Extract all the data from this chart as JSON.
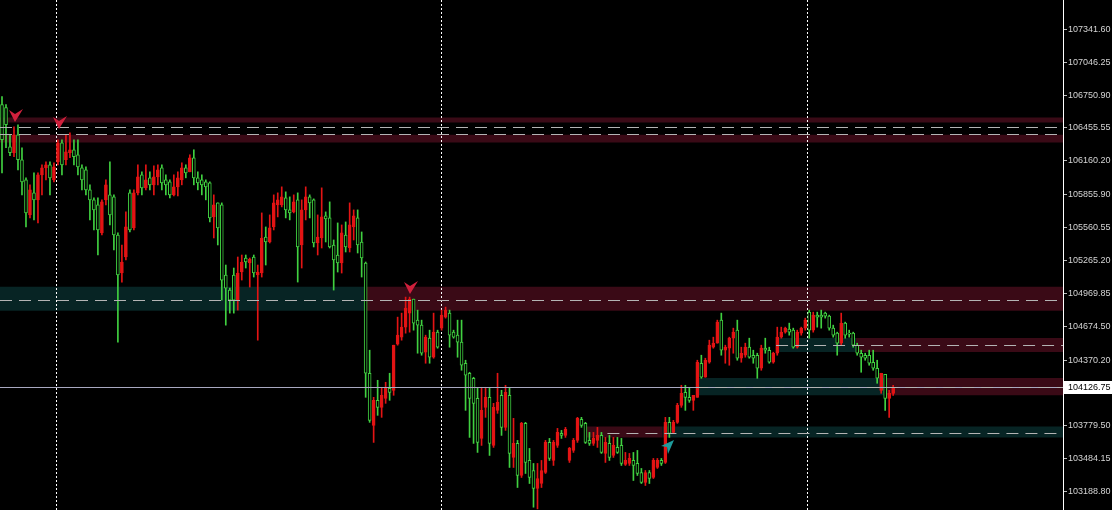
{
  "chart_data": {
    "type": "candlestick",
    "categories": [
      null,
      null,
      null,
      null,
      null,
      null,
      null,
      null,
      null,
      null,
      null,
      null,
      null,
      null,
      null,
      null,
      null,
      null,
      null,
      null,
      null,
      null,
      null,
      null,
      null,
      null,
      null,
      null,
      null,
      null,
      null,
      null,
      null,
      null,
      null,
      null,
      null,
      null,
      null,
      null,
      null,
      null,
      null,
      null,
      null,
      null,
      null,
      null,
      null,
      null,
      null,
      null,
      null,
      null,
      null,
      null,
      null,
      null,
      null,
      null,
      null,
      null,
      null,
      null,
      null,
      null,
      null,
      null,
      null,
      null,
      null,
      null,
      null,
      null,
      null,
      null,
      null,
      null,
      null,
      null,
      null,
      null,
      null,
      null,
      null,
      null,
      null,
      null,
      null,
      null,
      null,
      null,
      null,
      null,
      null,
      null,
      null,
      null,
      null,
      null,
      null,
      null,
      null,
      null,
      null,
      null,
      null,
      null,
      null,
      null,
      null,
      null,
      null,
      null,
      null,
      null,
      null,
      null,
      null,
      null,
      null,
      null,
      null,
      null,
      null,
      null,
      null,
      null,
      null,
      null,
      null,
      null,
      null,
      null,
      null,
      null,
      null,
      null,
      null,
      null,
      null,
      null,
      null,
      null,
      null,
      null,
      null,
      null,
      null,
      null,
      null,
      null,
      null,
      null,
      null,
      null,
      null,
      null,
      null,
      null,
      null,
      null,
      null,
      null,
      null,
      null,
      null,
      null,
      null,
      null,
      null,
      null,
      null,
      null,
      null,
      null,
      null,
      null,
      null,
      null,
      null,
      null,
      null,
      null,
      null,
      null,
      null,
      null,
      null,
      null,
      null,
      null,
      null,
      null,
      null,
      null,
      null,
      null,
      null,
      null,
      null,
      null,
      null,
      null,
      null,
      null,
      null,
      null,
      null,
      null,
      null,
      null,
      null,
      null,
      null,
      null,
      null,
      null,
      null,
      null,
      null,
      null,
      null,
      null,
      null,
      null,
      null,
      null,
      null,
      null,
      null,
      null,
      null,
      null,
      null,
      null,
      null,
      null,
      null,
      null,
      null,
      null,
      null,
      null,
      null,
      null,
      null,
      null,
      null,
      null,
      null,
      null,
      null,
      null,
      null,
      null,
      null,
      null,
      null,
      null,
      null,
      null,
      null,
      null,
      null,
      null
    ],
    "ohlc": [
      [
        106665,
        106737,
        106053,
        106350
      ],
      [
        106638,
        106665,
        106278,
        106485
      ],
      [
        106287,
        106395,
        106206,
        106233
      ],
      [
        106233,
        106467,
        106197,
        106395
      ],
      [
        106395,
        106485,
        106080,
        106170
      ],
      [
        106170,
        106278,
        105855,
        105972
      ],
      [
        105990,
        106008,
        105567,
        105693
      ],
      [
        105675,
        105945,
        105648,
        105900
      ],
      [
        105873,
        106053,
        105630,
        105810
      ],
      [
        105810,
        106053,
        105603,
        106035
      ],
      [
        106035,
        106125,
        105855,
        106098
      ],
      [
        106098,
        106152,
        105990,
        106125
      ],
      [
        106125,
        106152,
        105855,
        106008
      ],
      [
        105990,
        106143,
        105972,
        106107
      ],
      [
        106152,
        106350,
        106125,
        106323
      ],
      [
        106323,
        106350,
        106035,
        106125
      ],
      [
        106170,
        106395,
        106125,
        106242
      ],
      [
        106233,
        106413,
        106188,
        106260
      ],
      [
        106260,
        106350,
        106125,
        106197
      ],
      [
        106215,
        106350,
        106035,
        106107
      ],
      [
        106098,
        106125,
        105900,
        105990
      ],
      [
        106080,
        106107,
        105855,
        105900
      ],
      [
        105900,
        105945,
        105630,
        105810
      ],
      [
        105810,
        105828,
        105540,
        105720
      ],
      [
        105765,
        105828,
        105315,
        105540
      ],
      [
        105513,
        105810,
        105495,
        105792
      ],
      [
        105810,
        105990,
        105765,
        105945
      ],
      [
        105855,
        106152,
        105585,
        105675
      ],
      [
        105837,
        105855,
        105360,
        105495
      ],
      [
        105495,
        105513,
        104532,
        105135
      ],
      [
        105153,
        105405,
        105072,
        105252
      ],
      [
        105297,
        105702,
        105270,
        105567
      ],
      [
        105873,
        105900,
        105522,
        105540
      ],
      [
        105558,
        105900,
        105540,
        105873
      ],
      [
        105873,
        106125,
        105855,
        106017
      ],
      [
        106035,
        106062,
        105855,
        105918
      ],
      [
        105918,
        106125,
        105900,
        105990
      ],
      [
        106008,
        106062,
        105900,
        105945
      ],
      [
        105945,
        106116,
        105855,
        106017
      ],
      [
        106017,
        106125,
        105945,
        106080
      ],
      [
        106098,
        106125,
        105900,
        105963
      ],
      [
        105990,
        106035,
        105855,
        105945
      ],
      [
        105972,
        105990,
        105828,
        105855
      ],
      [
        105855,
        106035,
        105846,
        105927
      ],
      [
        105927,
        106062,
        105846,
        106008
      ],
      [
        105990,
        106143,
        105945,
        106098
      ],
      [
        106098,
        106125,
        106008,
        106053
      ],
      [
        106062,
        106215,
        106062,
        106188
      ],
      [
        106188,
        106260,
        105945,
        106008
      ],
      [
        106008,
        106062,
        105900,
        105963
      ],
      [
        105990,
        106035,
        105855,
        105945
      ],
      [
        105972,
        105990,
        105810,
        105927
      ],
      [
        105963,
        105972,
        105612,
        105648
      ],
      [
        105657,
        105855,
        105468,
        105765
      ],
      [
        105783,
        105783,
        105405,
        105558
      ],
      [
        105765,
        105783,
        104910,
        105090
      ],
      [
        105135,
        105225,
        104685,
        105018
      ],
      [
        105000,
        105018,
        104793,
        104910
      ],
      [
        105135,
        105198,
        104793,
        104910
      ],
      [
        104910,
        105297,
        104820,
        105153
      ],
      [
        105162,
        105315,
        105090,
        105252
      ],
      [
        105288,
        105315,
        105198,
        105252
      ],
      [
        105243,
        105288,
        105027,
        105279
      ],
      [
        105297,
        105315,
        105117,
        105153
      ],
      [
        105135,
        105225,
        104550,
        105162
      ],
      [
        105153,
        105693,
        105117,
        105468
      ],
      [
        105477,
        105567,
        105225,
        105432
      ],
      [
        105432,
        105675,
        105423,
        105558
      ],
      [
        105567,
        105855,
        105540,
        105783
      ],
      [
        105765,
        105873,
        105657,
        105810
      ],
      [
        105765,
        105927,
        105747,
        105837
      ],
      [
        105828,
        105882,
        105648,
        105720
      ],
      [
        105720,
        105837,
        105630,
        105693
      ],
      [
        105702,
        105855,
        105693,
        105792
      ],
      [
        105810,
        105873,
        105072,
        105387
      ],
      [
        105405,
        105810,
        105198,
        105720
      ],
      [
        105720,
        105927,
        105630,
        105837
      ],
      [
        105837,
        105855,
        105648,
        105783
      ],
      [
        105810,
        105819,
        105387,
        105423
      ],
      [
        105423,
        105675,
        105315,
        105477
      ],
      [
        105468,
        105918,
        105378,
        105657
      ],
      [
        105666,
        105702,
        105432,
        105639
      ],
      [
        105648,
        105792,
        105378,
        105387
      ],
      [
        105405,
        105450,
        105000,
        105270
      ],
      [
        105315,
        105603,
        105162,
        105243
      ],
      [
        105243,
        105585,
        105153,
        105513
      ],
      [
        105495,
        105612,
        105342,
        105387
      ],
      [
        105378,
        105783,
        105342,
        105585
      ],
      [
        105567,
        105720,
        105450,
        105666
      ],
      [
        105648,
        105720,
        105333,
        105405
      ],
      [
        105432,
        105522,
        105117,
        105288
      ],
      [
        105243,
        105252,
        104037,
        104253
      ],
      [
        104253,
        104460,
        103812,
        103830
      ],
      [
        103785,
        104037,
        103632,
        104010
      ],
      [
        104010,
        104190,
        103875,
        103947
      ],
      [
        103947,
        104127,
        103857,
        104055
      ],
      [
        104028,
        104172,
        103983,
        104118
      ],
      [
        104118,
        104253,
        104010,
        104082
      ],
      [
        104100,
        104505,
        104055,
        104505
      ],
      [
        104514,
        104757,
        104505,
        104595
      ],
      [
        104577,
        104793,
        104550,
        104667
      ],
      [
        104667,
        104937,
        104613,
        104838
      ],
      [
        104793,
        104937,
        104622,
        104919
      ],
      [
        104919,
        104919,
        104640,
        104703
      ],
      [
        104730,
        104820,
        104433,
        104685
      ],
      [
        104685,
        104730,
        104415,
        104433
      ],
      [
        104442,
        104595,
        104343,
        104577
      ],
      [
        104568,
        104640,
        104343,
        104397
      ],
      [
        104397,
        104793,
        104388,
        104622
      ],
      [
        104622,
        104640,
        104478,
        104487
      ],
      [
        104658,
        104820,
        104640,
        104775
      ],
      [
        104757,
        104847,
        104748,
        104820
      ],
      [
        104793,
        104820,
        104487,
        104595
      ],
      [
        104622,
        104640,
        104568,
        104577
      ],
      [
        104595,
        104730,
        104397,
        104532
      ],
      [
        104532,
        104730,
        104280,
        104325
      ],
      [
        104343,
        104370,
        103920,
        104235
      ],
      [
        104253,
        104262,
        103677,
        104028
      ],
      [
        104208,
        104217,
        103623,
        103983
      ],
      [
        104028,
        104118,
        103542,
        103632
      ],
      [
        103668,
        104127,
        103605,
        103920
      ],
      [
        103947,
        104127,
        103857,
        104037
      ],
      [
        104037,
        104127,
        103515,
        103623
      ],
      [
        103605,
        103983,
        103587,
        103947
      ],
      [
        103920,
        104253,
        103893,
        103992
      ],
      [
        104055,
        104100,
        103695,
        103767
      ],
      [
        103767,
        104145,
        103740,
        104082
      ],
      [
        104055,
        104127,
        103407,
        103533
      ],
      [
        103497,
        103848,
        103407,
        103623
      ],
      [
        103623,
        103650,
        103227,
        103335
      ],
      [
        103335,
        103812,
        103317,
        103803
      ],
      [
        103803,
        103812,
        103353,
        103452
      ],
      [
        103470,
        103578,
        103263,
        103317
      ],
      [
        103380,
        103443,
        103050,
        103218
      ],
      [
        103218,
        103443,
        103035,
        103308
      ],
      [
        103263,
        103470,
        103227,
        103380
      ],
      [
        103362,
        103650,
        103353,
        103632
      ],
      [
        103632,
        103668,
        103470,
        103488
      ],
      [
        103470,
        103650,
        103425,
        103632
      ],
      [
        103605,
        103758,
        103587,
        103722
      ],
      [
        103713,
        103740,
        103668,
        103695
      ],
      [
        103695,
        103767,
        103677,
        103749
      ],
      [
        103470,
        103587,
        103452,
        103578
      ],
      [
        103560,
        103668,
        103542,
        103650
      ],
      [
        103650,
        103857,
        103632,
        103848
      ],
      [
        103839,
        103857,
        103767,
        103785
      ],
      [
        103803,
        103812,
        103623,
        103632
      ],
      [
        103650,
        103722,
        103605,
        103623
      ],
      [
        103623,
        103722,
        103605,
        103668
      ],
      [
        103650,
        103767,
        103587,
        103695
      ],
      [
        103695,
        103722,
        103533,
        103542
      ],
      [
        103533,
        103677,
        103452,
        103632
      ],
      [
        103623,
        103695,
        103470,
        103497
      ],
      [
        103515,
        103677,
        103497,
        103605
      ],
      [
        103587,
        103677,
        103533,
        103542
      ],
      [
        103605,
        103668,
        103425,
        103443
      ],
      [
        103434,
        103542,
        103425,
        103470
      ],
      [
        103443,
        103533,
        103425,
        103488
      ],
      [
        103470,
        103542,
        103290,
        103425
      ],
      [
        103443,
        103560,
        103335,
        103353
      ],
      [
        103362,
        103398,
        103263,
        103272
      ],
      [
        103272,
        103380,
        103245,
        103362
      ],
      [
        103362,
        103380,
        103263,
        103308
      ],
      [
        103317,
        103488,
        103308,
        103470
      ],
      [
        103407,
        103488,
        103398,
        103470
      ],
      [
        103470,
        103488,
        103425,
        103443
      ],
      [
        103452,
        103857,
        103443,
        103812
      ],
      [
        103812,
        103857,
        103677,
        103713
      ],
      [
        103722,
        103830,
        103713,
        103812
      ],
      [
        103812,
        103983,
        103803,
        103965
      ],
      [
        103965,
        104145,
        103947,
        104073
      ],
      [
        104082,
        104145,
        103920,
        104037
      ],
      [
        104037,
        104127,
        103992,
        104010
      ],
      [
        104010,
        104055,
        103920,
        104055
      ],
      [
        104037,
        104370,
        104037,
        104352
      ],
      [
        104343,
        104415,
        104208,
        104217
      ],
      [
        104217,
        104388,
        104217,
        104370
      ],
      [
        104352,
        104550,
        104343,
        104505
      ],
      [
        104487,
        104577,
        104478,
        104523
      ],
      [
        104523,
        104730,
        104523,
        104712
      ],
      [
        104730,
        104793,
        104415,
        104460
      ],
      [
        104460,
        104505,
        104343,
        104487
      ],
      [
        104478,
        104577,
        104325,
        104568
      ],
      [
        104568,
        104658,
        104433,
        104622
      ],
      [
        104640,
        104730,
        104370,
        104388
      ],
      [
        104388,
        104487,
        104352,
        104433
      ],
      [
        104415,
        104523,
        104397,
        104487
      ],
      [
        104487,
        104568,
        104388,
        104397
      ],
      [
        104415,
        104460,
        104343,
        104388
      ],
      [
        104415,
        104433,
        104208,
        104298
      ],
      [
        104298,
        104505,
        104280,
        104478
      ],
      [
        104478,
        104568,
        104433,
        104460
      ],
      [
        104460,
        104487,
        104343,
        104352
      ],
      [
        104352,
        104442,
        104343,
        104433
      ],
      [
        104433,
        104667,
        104415,
        104577
      ],
      [
        104577,
        104667,
        104568,
        104622
      ],
      [
        104622,
        104667,
        104613,
        104658
      ],
      [
        104649,
        104703,
        104595,
        104622
      ],
      [
        104640,
        104658,
        104478,
        104487
      ],
      [
        104487,
        104640,
        104478,
        104622
      ],
      [
        104613,
        104667,
        104595,
        104658
      ],
      [
        104658,
        104748,
        104640,
        104730
      ],
      [
        104802,
        104820,
        104568,
        104640
      ],
      [
        104640,
        104802,
        104622,
        104775
      ],
      [
        104775,
        104802,
        104667,
        104757
      ],
      [
        104775,
        104820,
        104658,
        104757
      ],
      [
        104793,
        104802,
        104748,
        104766
      ],
      [
        104766,
        104775,
        104640,
        104658
      ],
      [
        104658,
        104685,
        104577,
        104595
      ],
      [
        104613,
        104622,
        104415,
        104523
      ],
      [
        104523,
        104793,
        104505,
        104703
      ],
      [
        104703,
        104712,
        104568,
        104595
      ],
      [
        104613,
        104640,
        104577,
        104604
      ],
      [
        104613,
        104622,
        104487,
        104505
      ],
      [
        104505,
        104523,
        104415,
        104433
      ],
      [
        104433,
        104460,
        104262,
        104397
      ],
      [
        104415,
        104433,
        104370,
        104388
      ],
      [
        104415,
        104460,
        104325,
        104343
      ],
      [
        104352,
        104460,
        104280,
        104298
      ],
      [
        104298,
        104370,
        104163,
        104208
      ],
      [
        104100,
        104253,
        104073,
        104253
      ],
      [
        104244,
        104244,
        103920,
        104028
      ],
      [
        104028,
        104100,
        103857,
        104073
      ],
      [
        104073,
        104145,
        104055,
        104126.75
      ],
      null,
      null,
      null,
      null,
      null,
      null,
      null,
      null,
      null,
      null,
      null,
      null,
      null,
      null,
      null,
      null,
      null,
      null,
      null,
      null,
      null,
      null,
      null,
      null,
      null,
      null,
      null,
      null,
      null,
      null,
      null,
      null,
      null,
      null,
      null,
      null,
      null,
      null,
      null,
      null,
      null,
      null
    ],
    "colors": [
      "#40d040",
      "#40d040",
      "#40d040",
      "#e31414",
      "#40d040",
      "#40d040",
      "#40d040",
      "#e31414",
      "#40d040",
      "#e31414",
      "#e31414",
      "#e31414",
      "#40d040",
      "#e31414",
      "#e31414",
      "#40d040",
      "#e31414",
      "#e31414",
      "#40d040",
      "#40d040",
      "#40d040",
      "#40d040",
      "#40d040",
      "#40d040",
      "#40d040",
      "#e31414",
      "#e31414",
      "#40d040",
      "#40d040",
      "#40d040",
      "#e31414",
      "#e31414",
      "#40d040",
      "#e31414",
      "#e31414",
      "#40d040",
      "#e31414",
      "#40d040",
      "#e31414",
      "#e31414",
      "#40d040",
      "#40d040",
      "#40d040",
      "#e31414",
      "#e31414",
      "#e31414",
      "#40d040",
      "#e31414",
      "#40d040",
      "#40d040",
      "#40d040",
      "#40d040",
      "#40d040",
      "#e31414",
      "#40d040",
      "#40d040",
      "#40d040",
      "#40d040",
      "#40d040",
      "#e31414",
      "#e31414",
      "#40d040",
      "#e31414",
      "#40d040",
      "#e31414",
      "#e31414",
      "#40d040",
      "#e31414",
      "#e31414",
      "#e31414",
      "#e31414",
      "#40d040",
      "#40d040",
      "#e31414",
      "#40d040",
      "#e31414",
      "#e31414",
      "#40d040",
      "#40d040",
      "#e31414",
      "#e31414",
      "#40d040",
      "#40d040",
      "#40d040",
      "#40d040",
      "#e31414",
      "#40d040",
      "#e31414",
      "#e31414",
      "#40d040",
      "#40d040",
      "#40d040",
      "#40d040",
      "#e31414",
      "#40d040",
      "#e31414",
      "#e31414",
      "#40d040",
      "#e31414",
      "#e31414",
      "#e31414",
      "#e31414",
      "#e31414",
      "#40d040",
      "#40d040",
      "#40d040",
      "#e31414",
      "#40d040",
      "#e31414",
      "#40d040",
      "#e31414",
      "#e31414",
      "#40d040",
      "#40d040",
      "#40d040",
      "#40d040",
      "#40d040",
      "#40d040",
      "#40d040",
      "#40d040",
      "#e31414",
      "#e31414",
      "#40d040",
      "#e31414",
      "#e31414",
      "#40d040",
      "#e31414",
      "#40d040",
      "#e31414",
      "#40d040",
      "#e31414",
      "#40d040",
      "#40d040",
      "#40d040",
      "#e31414",
      "#e31414",
      "#e31414",
      "#40d040",
      "#e31414",
      "#e31414",
      "#40d040",
      "#e31414",
      "#e31414",
      "#e31414",
      "#e31414",
      "#40d040",
      "#40d040",
      "#40d040",
      "#e31414",
      "#e31414",
      "#40d040",
      "#e31414",
      "#40d040",
      "#e31414",
      "#40d040",
      "#40d040",
      "#e31414",
      "#e31414",
      "#40d040",
      "#40d040",
      "#40d040",
      "#e31414",
      "#40d040",
      "#e31414",
      "#e31414",
      "#40d040",
      "#e31414",
      "#40d040",
      "#e31414",
      "#e31414",
      "#e31414",
      "#40d040",
      "#40d040",
      "#e31414",
      "#e31414",
      "#40d040",
      "#e31414",
      "#e31414",
      "#e31414",
      "#e31414",
      "#40d040",
      "#e31414",
      "#e31414",
      "#e31414",
      "#40d040",
      "#e31414",
      "#e31414",
      "#40d040",
      "#40d040",
      "#40d040",
      "#e31414",
      "#40d040",
      "#40d040",
      "#e31414",
      "#e31414",
      "#e31414",
      "#e31414",
      "#40d040",
      "#40d040",
      "#e31414",
      "#e31414",
      "#e31414",
      "#40d040",
      "#e31414",
      "#40d040",
      "#40d040",
      "#40d040",
      "#40d040",
      "#40d040",
      "#40d040",
      "#e31414",
      "#40d040",
      "#40d040",
      "#40d040",
      "#40d040",
      "#40d040",
      "#40d040",
      "#40d040",
      "#40d040",
      "#40d040",
      "#e31414",
      "#40d040",
      "#e31414",
      "#e31414",
      null,
      null,
      null,
      null,
      null,
      null,
      null,
      null,
      null,
      null,
      null,
      null,
      null,
      null,
      null,
      null,
      null,
      null,
      null,
      null,
      null,
      null,
      null,
      null,
      null,
      null,
      null,
      null,
      null,
      null,
      null,
      null,
      null,
      null,
      null,
      null,
      null,
      null,
      null,
      null,
      null,
      null
    ],
    "ylim": [
      103025,
      107605
    ],
    "yticks": [
      {
        "value": 107341.6,
        "label": "107341.60"
      },
      107046.25,
      {
        "value": 106750.9,
        "label": "106750.90"
      },
      106455.55,
      {
        "value": 106160.2,
        "label": "106160.20"
      },
      {
        "value": 105855.9,
        "label": "105855.90"
      },
      105560.55,
      {
        "value": 105265.2,
        "label": "105265.20"
      },
      104969.85,
      {
        "value": 104674.5,
        "label": "104674.50"
      },
      {
        "value": 104370.2,
        "label": "104370.20"
      },
      {
        "value": 104074.85,
        "label": null
      },
      {
        "value": 103779.5,
        "label": "103779.50"
      },
      103484.15,
      {
        "value": 103188.8,
        "label": "103188.80"
      }
    ],
    "tick_labels": "y",
    "bands": [
      {
        "axis": "y",
        "from": 106505,
        "to": 106550,
        "color": "#3a0a16"
      },
      {
        "axis": "y",
        "from": 106325,
        "to": 106395,
        "color": "#3a0a16"
      },
      {
        "axis": "y",
        "from": 104815,
        "to": 105030,
        "color": "#072424"
      },
      {
        "axis": "y",
        "from": 104815,
        "to": 105030,
        "color": "#3a0a16"
      },
      {
        "axis": "y",
        "from": 104445,
        "to": 104570,
        "color": "#3a0a16"
      },
      {
        "axis": "y",
        "from": 104445,
        "to": 104570,
        "color": "#072424"
      },
      {
        "axis": "y",
        "from": 104055,
        "to": 104210,
        "color": "#072424"
      },
      {
        "axis": "y",
        "from": 104055,
        "to": 104210,
        "color": "#3a0a16"
      },
      {
        "axis": "y",
        "from": 103675,
        "to": 103775,
        "color": "#3a0a16"
      },
      {
        "axis": "y",
        "from": 103675,
        "to": 103775,
        "color": "#072424"
      }
    ],
    "ref_lines": [
      {
        "axis": "y",
        "value": 106465,
        "color": "#b4b4b4",
        "line_style": "dashed"
      },
      {
        "axis": "y",
        "value": 106405,
        "color": "#b4b4b4",
        "line_style": "dashed"
      },
      {
        "axis": "y",
        "value": 104915,
        "color": "#b4b4b4",
        "line_style": "dashed"
      },
      {
        "axis": "y",
        "value": 104505,
        "color": "#b4b4b4",
        "line_style": "dashed"
      },
      {
        "axis": "y",
        "value": 104126.75,
        "label": "104126.75",
        "color": "#a8a8c0",
        "line_style": "solid"
      },
      {
        "axis": "y",
        "value": 104130,
        "color": "#b4b4b4",
        "line_style": "dashed"
      },
      {
        "axis": "y",
        "value": 103715,
        "color": "#b4b4b4",
        "line_style": "dashed"
      }
    ]
  }
}
